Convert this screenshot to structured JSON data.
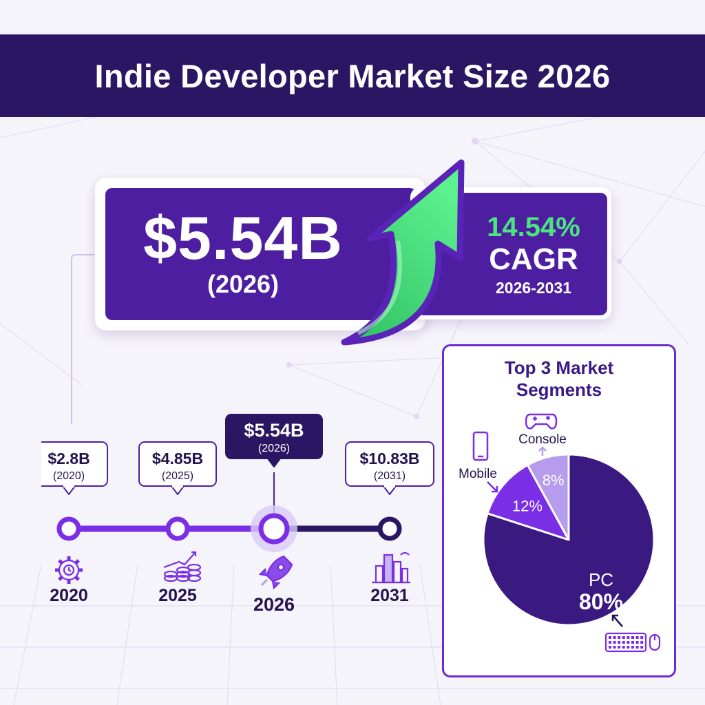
{
  "title": "Indie Developer Market Size 2026",
  "hero": {
    "value": "$5.54B",
    "year": "(2026)"
  },
  "cagr": {
    "percent": "14.54%",
    "label": "CAGR",
    "range": "2026-2031"
  },
  "colors": {
    "header": "#2b1664",
    "primary": "#4d1fa0",
    "accent_green": "#4be47f",
    "pie_pc": "#3a1a80",
    "pie_mobile": "#7a2ee6",
    "pie_console": "#b79bec"
  },
  "chart_data": [
    {
      "type": "line",
      "x": [
        "2020",
        "2025",
        "2026",
        "2031"
      ],
      "values": [
        2.8,
        4.85,
        5.54,
        10.83
      ],
      "labels": [
        "$2.8B",
        "$4.85B",
        "$5.54B",
        "$10.83B"
      ],
      "sublabels": [
        "(2020)",
        "(2025)",
        "(2026)",
        "(2031)"
      ],
      "highlight_index": 2,
      "icons": [
        "gear-clock-icon",
        "coins-growth-icon",
        "rocket-icon",
        "city-skyline-icon"
      ]
    },
    {
      "type": "pie",
      "title": "Top 3 Market Segments",
      "slices": [
        {
          "name": "PC",
          "value": 80,
          "label": "80%",
          "icon": "keyboard-mouse-icon"
        },
        {
          "name": "Mobile",
          "value": 12,
          "label": "12%",
          "icon": "smartphone-icon"
        },
        {
          "name": "Console",
          "value": 8,
          "label": "8%",
          "icon": "gamepad-icon"
        }
      ]
    }
  ]
}
